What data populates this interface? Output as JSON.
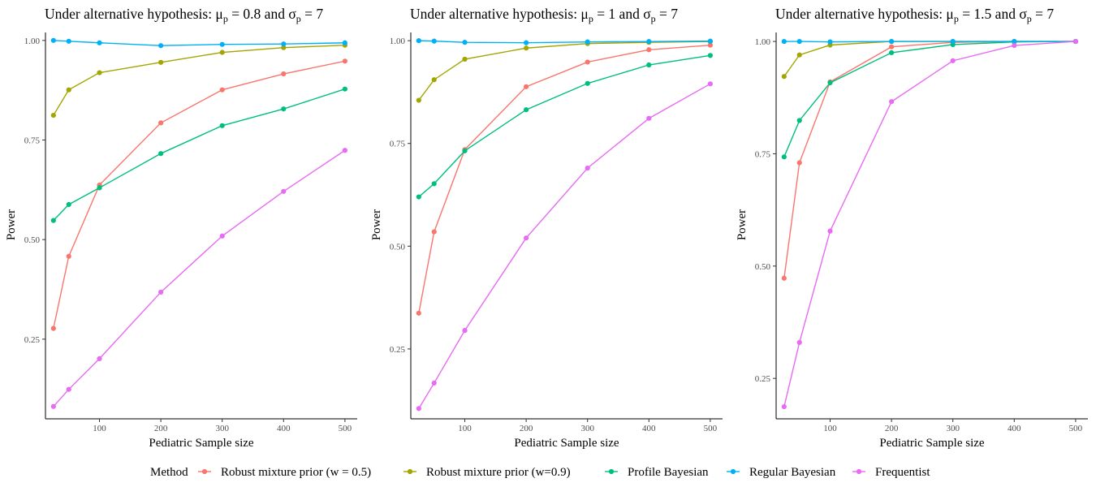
{
  "legend": {
    "title": "Method"
  },
  "axis_labels": {
    "x": "Pediatric Sample size",
    "y": "Power"
  },
  "chart_data": [
    {
      "type": "line",
      "title_parts": {
        "pre": "Under alternative hypothesis: μ",
        "sub1": "p",
        "mid": " = 0.8 and σ",
        "sub2": "p",
        "post": " = 7"
      },
      "xlabel": "Pediatric Sample size",
      "ylabel": "Power",
      "x": [
        25,
        50,
        100,
        200,
        300,
        400,
        500
      ],
      "xlim": [
        12,
        520
      ],
      "ylim": [
        0.05,
        1.02
      ],
      "x_ticks": [
        100,
        200,
        300,
        400,
        500
      ],
      "y_ticks": [
        0.25,
        0.5,
        0.75,
        1.0
      ],
      "y_tick_labels": [
        "0.25",
        "0.50",
        "0.75",
        "1.00"
      ],
      "series": [
        {
          "name": "Robust mixture prior (w = 0.5)",
          "color": "#F8766D",
          "values": [
            0.277,
            0.458,
            0.637,
            0.793,
            0.876,
            0.916,
            0.948
          ]
        },
        {
          "name": "Robust mixture prior (w=0.9)",
          "color": "#A3A500",
          "values": [
            0.812,
            0.876,
            0.919,
            0.945,
            0.97,
            0.982,
            0.988
          ]
        },
        {
          "name": "Profile Bayesian",
          "color": "#00BF7D",
          "values": [
            0.548,
            0.588,
            0.63,
            0.716,
            0.786,
            0.828,
            0.878
          ]
        },
        {
          "name": "Regular Bayesian",
          "color": "#00B0F6",
          "values": [
            1.0,
            0.998,
            0.994,
            0.987,
            0.99,
            0.991,
            0.994
          ]
        },
        {
          "name": "Frequentist",
          "color": "#E76BF3",
          "values": [
            0.081,
            0.124,
            0.201,
            0.368,
            0.509,
            0.621,
            0.724
          ]
        }
      ]
    },
    {
      "type": "line",
      "title_parts": {
        "pre": "Under alternative hypothesis: μ",
        "sub1": "p",
        "mid": " = 1 and σ",
        "sub2": "p",
        "post": " = 7"
      },
      "xlabel": "Pediatric Sample size",
      "ylabel": "Power",
      "x": [
        25,
        50,
        100,
        200,
        300,
        400,
        500
      ],
      "xlim": [
        12,
        520
      ],
      "ylim": [
        0.08,
        1.02
      ],
      "x_ticks": [
        100,
        200,
        300,
        400,
        500
      ],
      "y_ticks": [
        0.25,
        0.5,
        0.75,
        1.0
      ],
      "y_tick_labels": [
        "0.25",
        "0.50",
        "0.75",
        "1.00"
      ],
      "series": [
        {
          "name": "Robust mixture prior (w = 0.5)",
          "color": "#F8766D",
          "values": [
            0.337,
            0.535,
            0.735,
            0.888,
            0.948,
            0.978,
            0.989
          ]
        },
        {
          "name": "Robust mixture prior (w=0.9)",
          "color": "#A3A500",
          "values": [
            0.855,
            0.905,
            0.955,
            0.982,
            0.993,
            0.996,
            0.998
          ]
        },
        {
          "name": "Profile Bayesian",
          "color": "#00BF7D",
          "values": [
            0.62,
            0.652,
            0.732,
            0.832,
            0.896,
            0.941,
            0.964
          ]
        },
        {
          "name": "Regular Bayesian",
          "color": "#00B0F6",
          "values": [
            1.0,
            0.999,
            0.996,
            0.995,
            0.997,
            0.998,
            0.999
          ]
        },
        {
          "name": "Frequentist",
          "color": "#E76BF3",
          "values": [
            0.105,
            0.167,
            0.295,
            0.52,
            0.69,
            0.811,
            0.895
          ]
        }
      ]
    },
    {
      "type": "line",
      "title_parts": {
        "pre": "Under alternative hypothesis: μ",
        "sub1": "p",
        "mid": " = 1.5 and σ",
        "sub2": "p",
        "post": " = 7"
      },
      "xlabel": "Pediatric Sample size",
      "ylabel": "Power",
      "x": [
        25,
        50,
        100,
        200,
        300,
        400,
        500
      ],
      "xlim": [
        12,
        520
      ],
      "ylim": [
        0.16,
        1.02
      ],
      "x_ticks": [
        100,
        200,
        300,
        400,
        500
      ],
      "y_ticks": [
        0.25,
        0.5,
        0.75,
        1.0
      ],
      "y_tick_labels": [
        "0.25",
        "0.50",
        "0.75",
        "1.00"
      ],
      "series": [
        {
          "name": "Robust mixture prior (w = 0.5)",
          "color": "#F8766D",
          "values": [
            0.473,
            0.73,
            0.91,
            0.988,
            0.998,
            1.0,
            1.0
          ]
        },
        {
          "name": "Robust mixture prior (w=0.9)",
          "color": "#A3A500",
          "values": [
            0.922,
            0.97,
            0.992,
            1.0,
            1.0,
            1.0,
            1.0
          ]
        },
        {
          "name": "Profile Bayesian",
          "color": "#00BF7D",
          "values": [
            0.743,
            0.824,
            0.908,
            0.975,
            0.993,
            0.999,
            1.0
          ]
        },
        {
          "name": "Regular Bayesian",
          "color": "#00B0F6",
          "values": [
            1.0,
            1.0,
            0.999,
            1.0,
            1.0,
            1.0,
            1.0
          ]
        },
        {
          "name": "Frequentist",
          "color": "#E76BF3",
          "values": [
            0.187,
            0.33,
            0.578,
            0.866,
            0.957,
            0.991,
            1.0
          ]
        }
      ]
    }
  ]
}
